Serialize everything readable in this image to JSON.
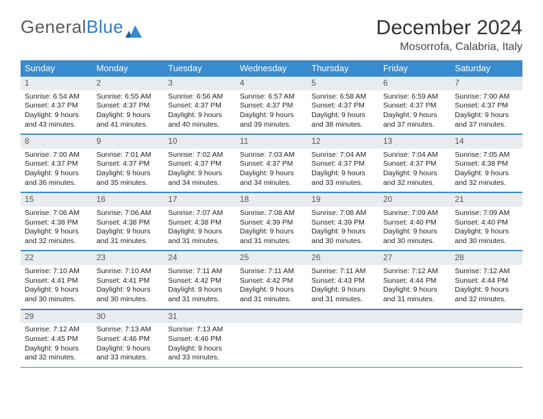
{
  "logo": {
    "word1": "General",
    "word2": "Blue"
  },
  "title": "December 2024",
  "location": "Mosorrofa, Calabria, Italy",
  "weekdays": [
    "Sunday",
    "Monday",
    "Tuesday",
    "Wednesday",
    "Thursday",
    "Friday",
    "Saturday"
  ],
  "colors": {
    "header_bg": "#3a8bce",
    "header_text": "#ffffff",
    "daynum_bg": "#e9ecef",
    "border": "#3a8bce",
    "logo_gray": "#5a5a5a",
    "logo_blue": "#2f7bc1"
  },
  "weeks": [
    [
      {
        "n": "1",
        "sr": "6:54 AM",
        "ss": "4:37 PM",
        "dl": "9 hours and 43 minutes."
      },
      {
        "n": "2",
        "sr": "6:55 AM",
        "ss": "4:37 PM",
        "dl": "9 hours and 41 minutes."
      },
      {
        "n": "3",
        "sr": "6:56 AM",
        "ss": "4:37 PM",
        "dl": "9 hours and 40 minutes."
      },
      {
        "n": "4",
        "sr": "6:57 AM",
        "ss": "4:37 PM",
        "dl": "9 hours and 39 minutes."
      },
      {
        "n": "5",
        "sr": "6:58 AM",
        "ss": "4:37 PM",
        "dl": "9 hours and 38 minutes."
      },
      {
        "n": "6",
        "sr": "6:59 AM",
        "ss": "4:37 PM",
        "dl": "9 hours and 37 minutes."
      },
      {
        "n": "7",
        "sr": "7:00 AM",
        "ss": "4:37 PM",
        "dl": "9 hours and 37 minutes."
      }
    ],
    [
      {
        "n": "8",
        "sr": "7:00 AM",
        "ss": "4:37 PM",
        "dl": "9 hours and 36 minutes."
      },
      {
        "n": "9",
        "sr": "7:01 AM",
        "ss": "4:37 PM",
        "dl": "9 hours and 35 minutes."
      },
      {
        "n": "10",
        "sr": "7:02 AM",
        "ss": "4:37 PM",
        "dl": "9 hours and 34 minutes."
      },
      {
        "n": "11",
        "sr": "7:03 AM",
        "ss": "4:37 PM",
        "dl": "9 hours and 34 minutes."
      },
      {
        "n": "12",
        "sr": "7:04 AM",
        "ss": "4:37 PM",
        "dl": "9 hours and 33 minutes."
      },
      {
        "n": "13",
        "sr": "7:04 AM",
        "ss": "4:37 PM",
        "dl": "9 hours and 32 minutes."
      },
      {
        "n": "14",
        "sr": "7:05 AM",
        "ss": "4:38 PM",
        "dl": "9 hours and 32 minutes."
      }
    ],
    [
      {
        "n": "15",
        "sr": "7:06 AM",
        "ss": "4:38 PM",
        "dl": "9 hours and 32 minutes."
      },
      {
        "n": "16",
        "sr": "7:06 AM",
        "ss": "4:38 PM",
        "dl": "9 hours and 31 minutes."
      },
      {
        "n": "17",
        "sr": "7:07 AM",
        "ss": "4:38 PM",
        "dl": "9 hours and 31 minutes."
      },
      {
        "n": "18",
        "sr": "7:08 AM",
        "ss": "4:39 PM",
        "dl": "9 hours and 31 minutes."
      },
      {
        "n": "19",
        "sr": "7:08 AM",
        "ss": "4:39 PM",
        "dl": "9 hours and 30 minutes."
      },
      {
        "n": "20",
        "sr": "7:09 AM",
        "ss": "4:40 PM",
        "dl": "9 hours and 30 minutes."
      },
      {
        "n": "21",
        "sr": "7:09 AM",
        "ss": "4:40 PM",
        "dl": "9 hours and 30 minutes."
      }
    ],
    [
      {
        "n": "22",
        "sr": "7:10 AM",
        "ss": "4:41 PM",
        "dl": "9 hours and 30 minutes."
      },
      {
        "n": "23",
        "sr": "7:10 AM",
        "ss": "4:41 PM",
        "dl": "9 hours and 30 minutes."
      },
      {
        "n": "24",
        "sr": "7:11 AM",
        "ss": "4:42 PM",
        "dl": "9 hours and 31 minutes."
      },
      {
        "n": "25",
        "sr": "7:11 AM",
        "ss": "4:42 PM",
        "dl": "9 hours and 31 minutes."
      },
      {
        "n": "26",
        "sr": "7:11 AM",
        "ss": "4:43 PM",
        "dl": "9 hours and 31 minutes."
      },
      {
        "n": "27",
        "sr": "7:12 AM",
        "ss": "4:44 PM",
        "dl": "9 hours and 31 minutes."
      },
      {
        "n": "28",
        "sr": "7:12 AM",
        "ss": "4:44 PM",
        "dl": "9 hours and 32 minutes."
      }
    ],
    [
      {
        "n": "29",
        "sr": "7:12 AM",
        "ss": "4:45 PM",
        "dl": "9 hours and 32 minutes."
      },
      {
        "n": "30",
        "sr": "7:13 AM",
        "ss": "4:46 PM",
        "dl": "9 hours and 33 minutes."
      },
      {
        "n": "31",
        "sr": "7:13 AM",
        "ss": "4:46 PM",
        "dl": "9 hours and 33 minutes."
      },
      null,
      null,
      null,
      null
    ]
  ],
  "labels": {
    "sr": "Sunrise:",
    "ss": "Sunset:",
    "dl": "Daylight:"
  }
}
